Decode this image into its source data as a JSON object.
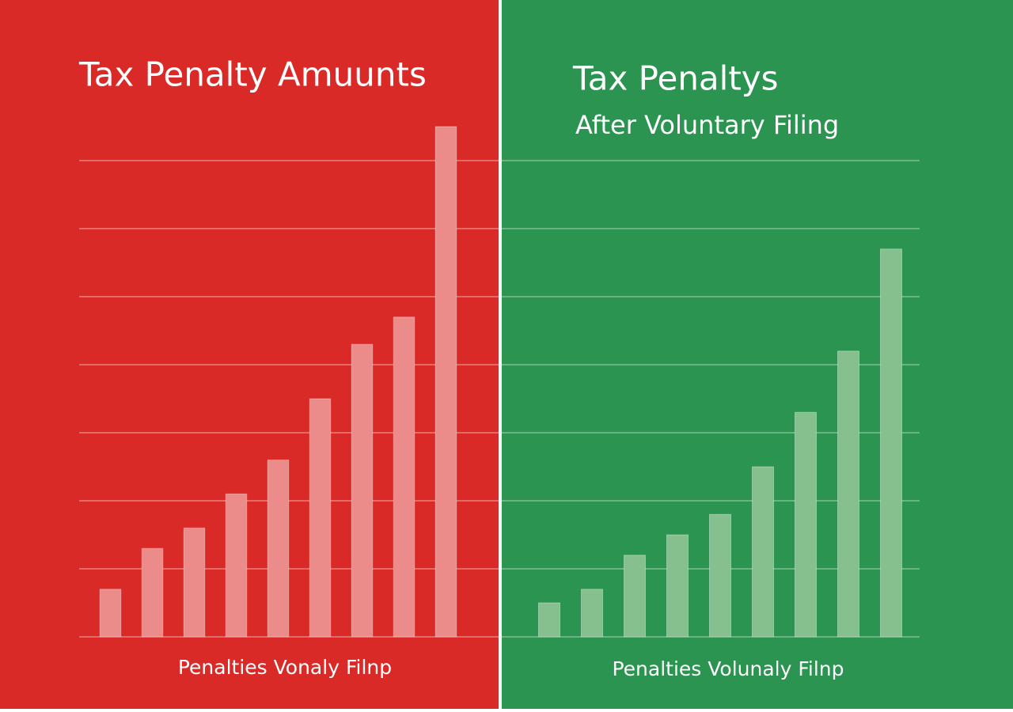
{
  "chart_data": [
    {
      "type": "bar",
      "title": "Tax Penalty Amuunts",
      "x_label": "Penalties Vonaly Filnp",
      "categories": [
        null,
        null,
        null,
        null,
        null,
        null,
        null,
        null,
        null
      ],
      "values": [
        0.7,
        1.3,
        1.6,
        2.1,
        2.6,
        3.5,
        4.3,
        4.7,
        7.5
      ],
      "color": "#ec8c8a",
      "ylim": [
        0,
        8
      ],
      "yticks": [
        0,
        1,
        2,
        3,
        4,
        5,
        6,
        7
      ],
      "grid": true
    },
    {
      "type": "bar",
      "title": "Tax Penaltys",
      "subtitle": "After Voluntary Filing",
      "x_label": "Penalties Volunaly Filnp",
      "categories": [
        null,
        null,
        null,
        null,
        null,
        null,
        null,
        null,
        null
      ],
      "values": [
        0.5,
        0.7,
        1.2,
        1.5,
        1.8,
        2.5,
        3.3,
        4.2,
        5.7
      ],
      "color": "#86c08f",
      "ylim": [
        0,
        8
      ],
      "yticks": [
        0,
        1,
        2,
        3,
        4,
        5,
        6,
        7
      ],
      "grid": true
    }
  ]
}
